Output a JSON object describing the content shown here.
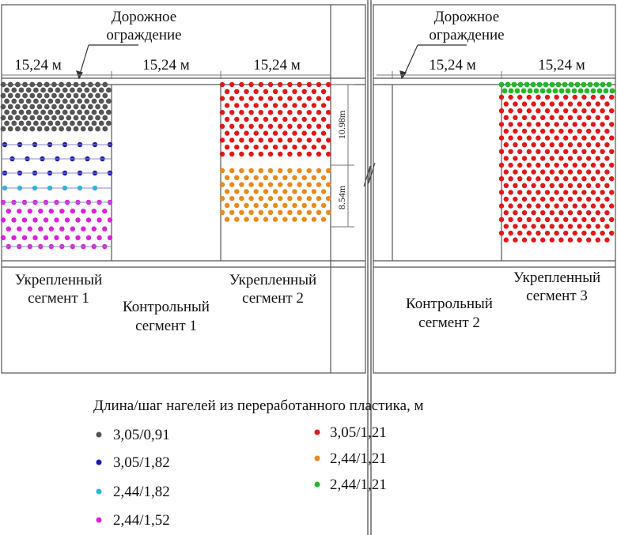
{
  "labels": {
    "guardrail_left": [
      "Дорожное",
      "ограждение"
    ],
    "guardrail_right": [
      "Дорожное",
      "ограждение"
    ],
    "dims": [
      "15,24 м",
      "15,24 м",
      "15,24 м",
      "15,24 м",
      "15,24 м"
    ],
    "dim_vertical_top": "10.98m",
    "dim_vertical_bottom": "8.54m",
    "segments": [
      [
        "Укрепленный",
        "сегмент 1"
      ],
      [
        "Контрольный",
        "сегмент 1"
      ],
      [
        "Укрепленный",
        "сегмент 2"
      ],
      [
        "Контрольный",
        "сегмент 2"
      ],
      [
        "Укрепленный",
        "сегмент 3"
      ]
    ]
  },
  "legend": {
    "title": "Длина/шаг нагелей из переработанного пластика, м",
    "items": [
      {
        "label": "3,05/0,91",
        "color": "#555555"
      },
      {
        "label": "3,05/1,82",
        "color": "#1a1aa8"
      },
      {
        "label": "2,44/1,82",
        "color": "#22bcd6"
      },
      {
        "label": "2,44/1,52",
        "color": "#e020d8"
      },
      {
        "label": "3,05/1,21",
        "color": "#e01818"
      },
      {
        "label": "2,44/1,21",
        "color": "#e88a1c"
      },
      {
        "label": "2,44/1,21",
        "color": "#20b828"
      }
    ]
  }
}
